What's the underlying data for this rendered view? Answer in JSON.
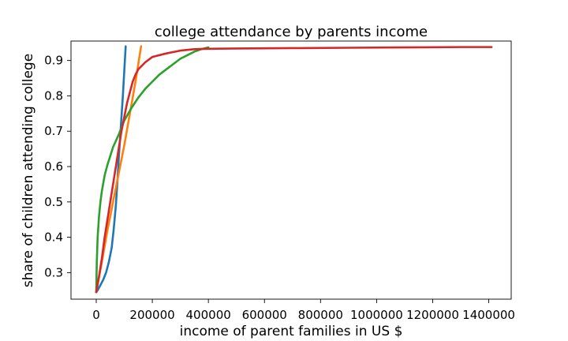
{
  "chart_data": {
    "type": "line",
    "title": "college attendance by parents income",
    "xlabel": "income of parent families in US $",
    "ylabel": "share of children attending college",
    "xlim": [
      -90000,
      1480000
    ],
    "ylim": [
      0.225,
      0.955
    ],
    "x_ticks": [
      0,
      200000,
      400000,
      600000,
      800000,
      1000000,
      1200000,
      1400000
    ],
    "x_tick_labels": [
      "0",
      "200000",
      "400000",
      "600000",
      "800000",
      "1000000",
      "1200000",
      "1400000"
    ],
    "y_ticks": [
      0.3,
      0.4,
      0.5,
      0.6,
      0.7,
      0.8,
      0.9
    ],
    "y_tick_labels": [
      "0.3",
      "0.4",
      "0.5",
      "0.6",
      "0.7",
      "0.8",
      "0.9"
    ],
    "grid": false,
    "series": [
      {
        "color": "#1f77b4",
        "x": [
          0,
          5000,
          15000,
          25000,
          35000,
          45000,
          55000,
          62000,
          70000,
          75000,
          80000,
          85000,
          90000,
          95000,
          100000,
          105000
        ],
        "y": [
          0.245,
          0.25,
          0.265,
          0.28,
          0.3,
          0.33,
          0.37,
          0.42,
          0.49,
          0.55,
          0.62,
          0.68,
          0.74,
          0.8,
          0.87,
          0.94
        ]
      },
      {
        "color": "#ff7f0e",
        "x": [
          0,
          20000,
          40000,
          60000,
          80000,
          100000,
          120000,
          140000,
          160000
        ],
        "y": [
          0.245,
          0.33,
          0.42,
          0.5,
          0.58,
          0.66,
          0.75,
          0.84,
          0.94
        ]
      },
      {
        "color": "#2ca02c",
        "x": [
          0,
          2000,
          5000,
          10000,
          15000,
          20000,
          30000,
          40000,
          50000,
          60000,
          80000,
          100000,
          125000,
          150000,
          175000,
          200000,
          225000,
          250000,
          275000,
          300000,
          325000,
          350000,
          375000,
          400000
        ],
        "y": [
          0.245,
          0.33,
          0.4,
          0.46,
          0.5,
          0.53,
          0.575,
          0.605,
          0.63,
          0.655,
          0.69,
          0.73,
          0.765,
          0.795,
          0.82,
          0.84,
          0.86,
          0.875,
          0.89,
          0.905,
          0.915,
          0.925,
          0.932,
          0.937
        ]
      },
      {
        "color": "#d62728",
        "x": [
          0,
          10000,
          20000,
          30000,
          40000,
          50000,
          60000,
          70000,
          80000,
          90000,
          100000,
          110000,
          120000,
          130000,
          140000,
          150000,
          175000,
          200000,
          250000,
          300000,
          350000,
          400000,
          500000,
          700000,
          900000,
          1100000,
          1300000,
          1410000
        ],
        "y": [
          0.245,
          0.29,
          0.34,
          0.4,
          0.45,
          0.5,
          0.55,
          0.6,
          0.65,
          0.7,
          0.74,
          0.78,
          0.81,
          0.84,
          0.86,
          0.875,
          0.895,
          0.91,
          0.92,
          0.928,
          0.932,
          0.933,
          0.934,
          0.935,
          0.936,
          0.937,
          0.938,
          0.938
        ]
      }
    ]
  }
}
